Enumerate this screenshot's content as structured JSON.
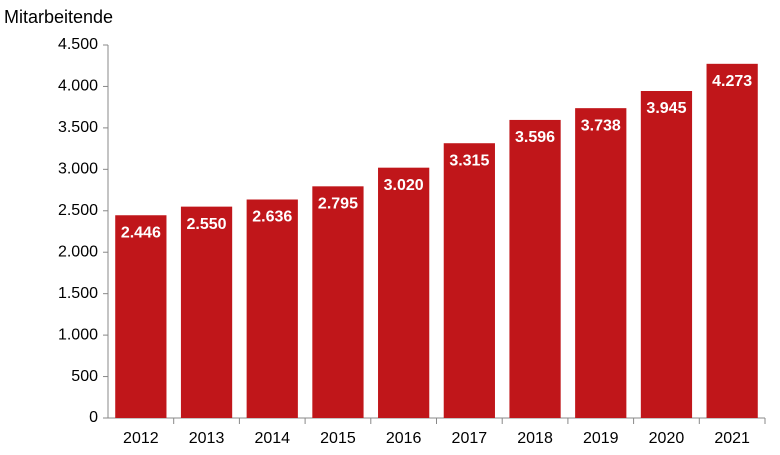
{
  "chart_data": {
    "type": "bar",
    "y_label": "Mitarbeitende",
    "categories": [
      "2012",
      "2013",
      "2014",
      "2015",
      "2016",
      "2017",
      "2018",
      "2019",
      "2020",
      "2021"
    ],
    "values": [
      2446,
      2550,
      2636,
      2795,
      3020,
      3315,
      3596,
      3738,
      3945,
      4273
    ],
    "value_labels": [
      "2.446",
      "2.550",
      "2.636",
      "2.795",
      "3.020",
      "3.315",
      "3.596",
      "3.738",
      "3.945",
      "4.273"
    ],
    "color": "#c0161a",
    "ylim": [
      0,
      4500
    ],
    "yticks": [
      0,
      500,
      {
        "value": 1000,
        "label": "1.000"
      },
      {
        "value": 1500,
        "label": "1.500"
      },
      {
        "value": 2000,
        "label": "2.000"
      },
      {
        "value": 2500,
        "label": "2.500"
      },
      {
        "value": 3000,
        "label": "3.000"
      },
      {
        "value": 3500,
        "label": "3.500"
      },
      {
        "value": 4000,
        "label": "4.000"
      },
      {
        "value": 4500,
        "label": "4.500"
      }
    ],
    "grid": false
  }
}
